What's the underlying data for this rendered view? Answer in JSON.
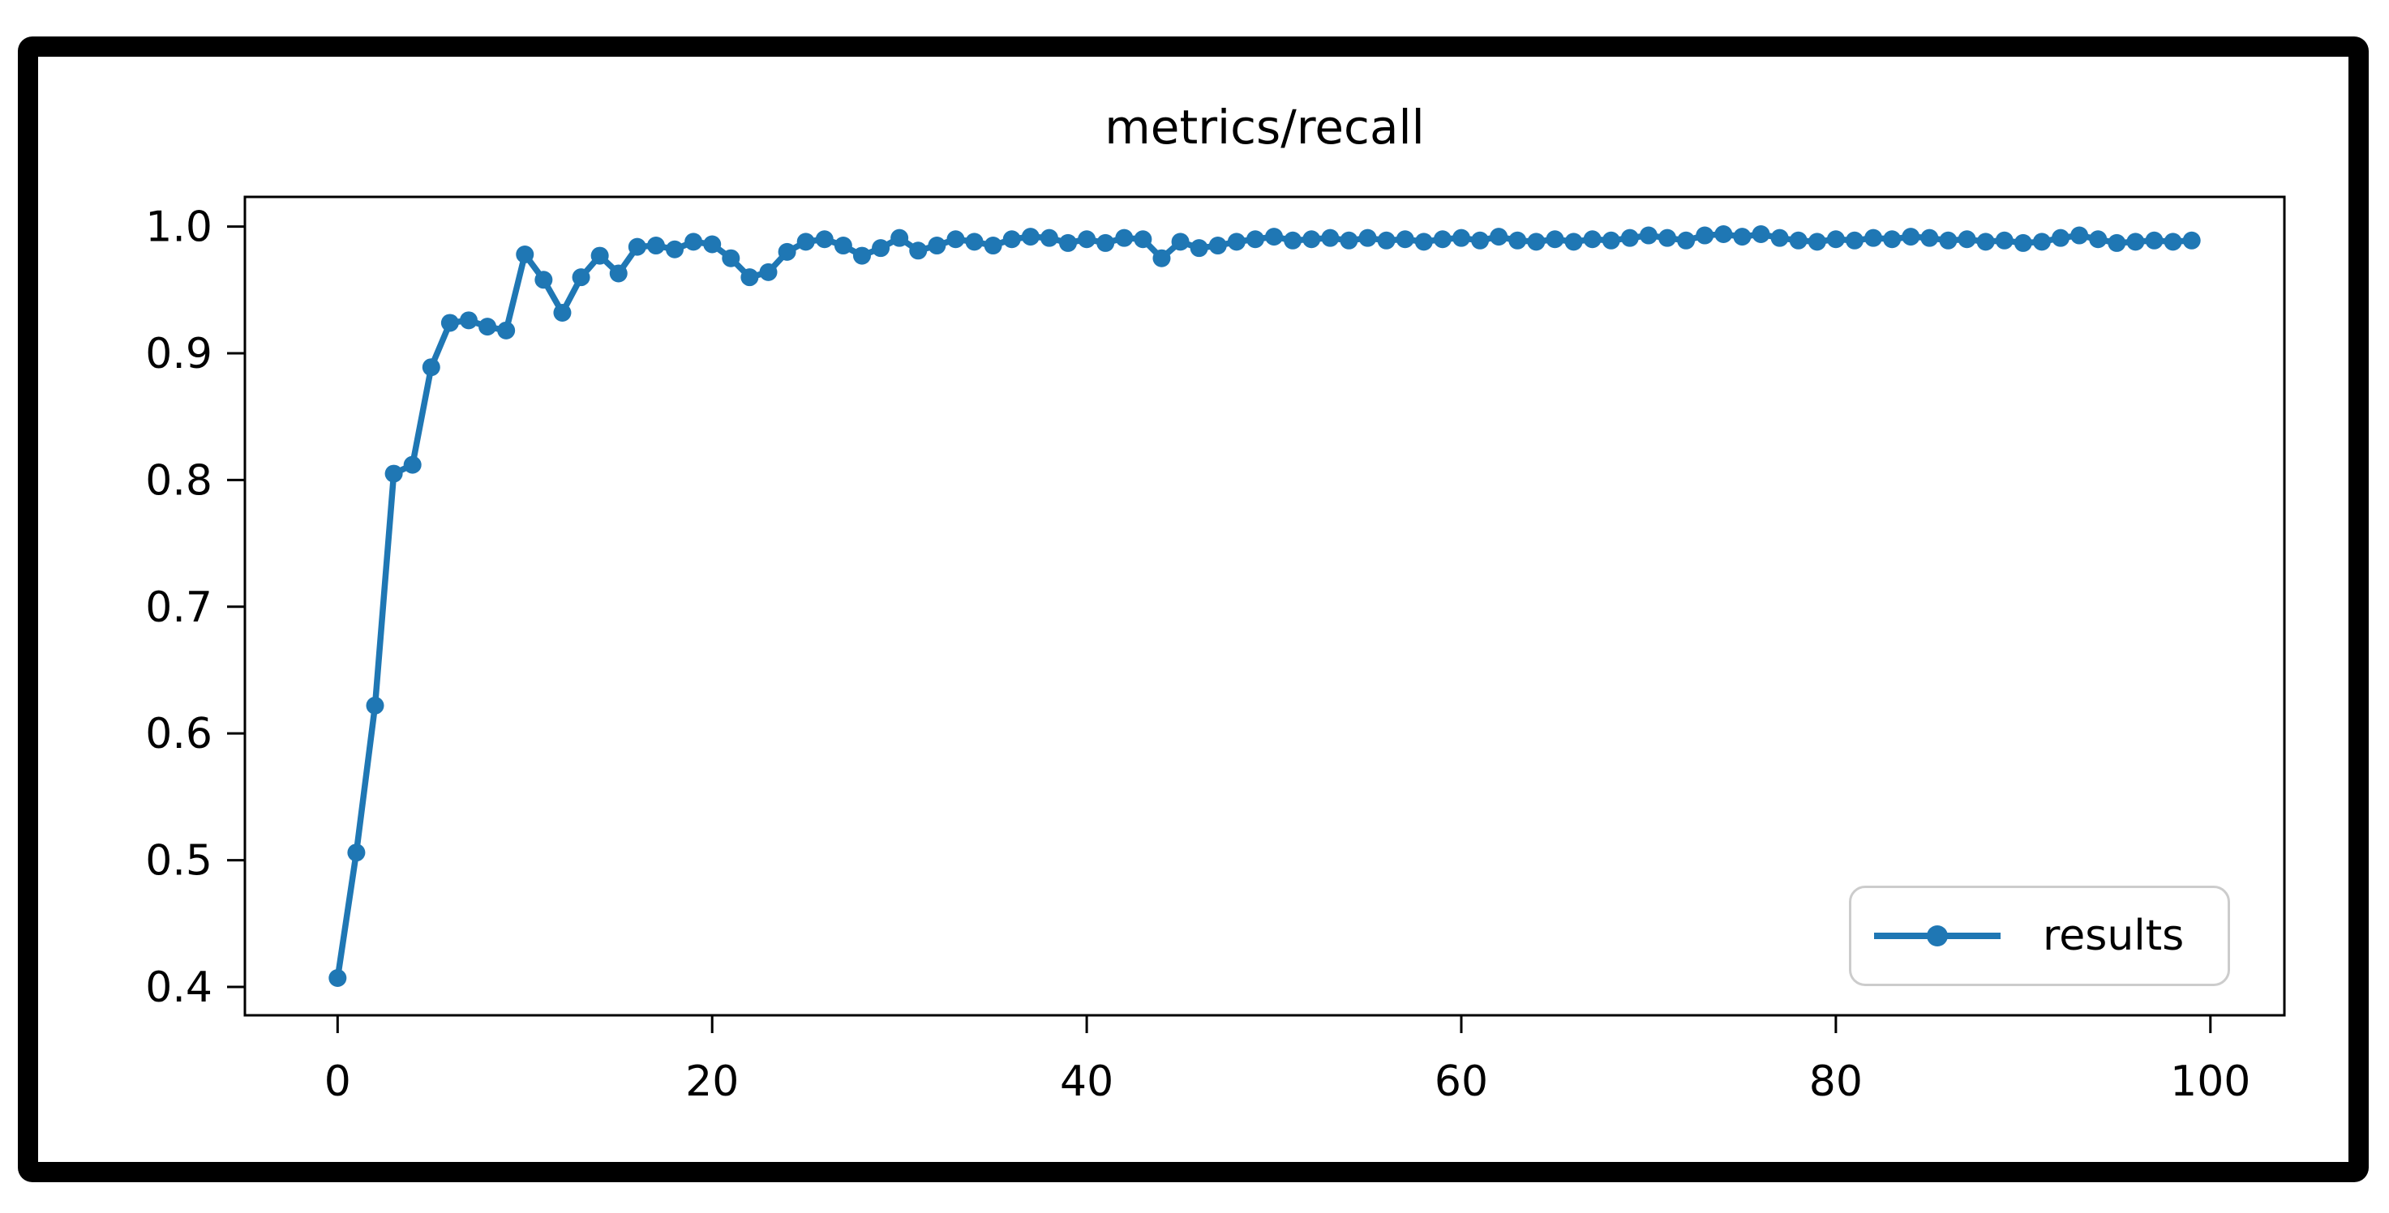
{
  "figure": {
    "background": "#ffffff",
    "frame_color": "#000000"
  },
  "chart_data": {
    "type": "line",
    "title": "metrics/recall",
    "xlabel": "",
    "ylabel": "",
    "grid": false,
    "line_color": "#1f77b4",
    "marker": "circle",
    "xlim": [
      -4.95,
      103.95
    ],
    "ylim": [
      0.3776,
      1.0234
    ],
    "x_tick_labels": [
      "0",
      "20",
      "40",
      "60",
      "80",
      "100"
    ],
    "x_ticks": [
      0,
      20,
      40,
      60,
      80,
      100
    ],
    "y_tick_labels": [
      "0.4",
      "0.5",
      "0.6",
      "0.7",
      "0.8",
      "0.9",
      "1.0"
    ],
    "y_ticks": [
      0.4,
      0.5,
      0.6,
      0.7,
      0.8,
      0.9,
      1.0
    ],
    "legend": {
      "position": "lower right",
      "entries": [
        "results"
      ]
    },
    "x": [
      0,
      1,
      2,
      3,
      4,
      5,
      6,
      7,
      8,
      9,
      10,
      11,
      12,
      13,
      14,
      15,
      16,
      17,
      18,
      19,
      20,
      21,
      22,
      23,
      24,
      25,
      26,
      27,
      28,
      29,
      30,
      31,
      32,
      33,
      34,
      35,
      36,
      37,
      38,
      39,
      40,
      41,
      42,
      43,
      44,
      45,
      46,
      47,
      48,
      49,
      50,
      51,
      52,
      53,
      54,
      55,
      56,
      57,
      58,
      59,
      60,
      61,
      62,
      63,
      64,
      65,
      66,
      67,
      68,
      69,
      70,
      71,
      72,
      73,
      74,
      75,
      76,
      77,
      78,
      79,
      80,
      81,
      82,
      83,
      84,
      85,
      86,
      87,
      88,
      89,
      90,
      91,
      92,
      93,
      94,
      95,
      96,
      97,
      98,
      99
    ],
    "series": [
      {
        "name": "results",
        "values": [
          0.407,
          0.506,
          0.622,
          0.805,
          0.812,
          0.889,
          0.924,
          0.926,
          0.921,
          0.918,
          0.978,
          0.958,
          0.932,
          0.96,
          0.977,
          0.963,
          0.984,
          0.985,
          0.982,
          0.988,
          0.986,
          0.975,
          0.96,
          0.964,
          0.98,
          0.988,
          0.99,
          0.985,
          0.977,
          0.983,
          0.991,
          0.981,
          0.985,
          0.99,
          0.988,
          0.985,
          0.99,
          0.992,
          0.991,
          0.987,
          0.99,
          0.987,
          0.991,
          0.99,
          0.975,
          0.988,
          0.983,
          0.985,
          0.988,
          0.99,
          0.992,
          0.989,
          0.99,
          0.991,
          0.989,
          0.991,
          0.989,
          0.99,
          0.988,
          0.99,
          0.991,
          0.989,
          0.992,
          0.989,
          0.988,
          0.99,
          0.988,
          0.99,
          0.989,
          0.991,
          0.993,
          0.991,
          0.989,
          0.993,
          0.994,
          0.992,
          0.994,
          0.991,
          0.989,
          0.988,
          0.99,
          0.989,
          0.991,
          0.99,
          0.992,
          0.991,
          0.989,
          0.99,
          0.988,
          0.989,
          0.987,
          0.988,
          0.991,
          0.993,
          0.99,
          0.987,
          0.988,
          0.989,
          0.988,
          0.989
        ]
      }
    ]
  }
}
